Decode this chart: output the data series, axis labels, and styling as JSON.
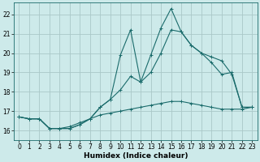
{
  "xlabel": "Humidex (Indice chaleur)",
  "xlim": [
    -0.5,
    23.5
  ],
  "ylim": [
    15.5,
    22.6
  ],
  "yticks": [
    16,
    17,
    18,
    19,
    20,
    21,
    22
  ],
  "xticks": [
    0,
    1,
    2,
    3,
    4,
    5,
    6,
    7,
    8,
    9,
    10,
    11,
    12,
    13,
    14,
    15,
    16,
    17,
    18,
    19,
    20,
    21,
    22,
    23
  ],
  "background_color": "#cdeaea",
  "grid_color": "#aac8c8",
  "line_color": "#1a6b6b",
  "line1_y": [
    16.7,
    16.6,
    16.6,
    16.1,
    16.1,
    16.1,
    16.3,
    16.6,
    17.2,
    17.6,
    19.9,
    21.2,
    18.5,
    19.9,
    21.3,
    22.3,
    21.1,
    20.4,
    20.0,
    19.5,
    18.9,
    19.0,
    17.2,
    17.2
  ],
  "line2_y": [
    16.7,
    16.6,
    16.6,
    16.1,
    16.1,
    16.1,
    16.3,
    16.6,
    17.2,
    17.6,
    18.1,
    18.8,
    18.5,
    19.0,
    20.0,
    21.2,
    21.1,
    20.4,
    20.0,
    19.8,
    19.6,
    18.9,
    17.2,
    17.2
  ],
  "line3_y": [
    16.7,
    16.6,
    16.6,
    16.1,
    16.1,
    16.2,
    16.4,
    16.6,
    16.8,
    16.9,
    17.0,
    17.1,
    17.2,
    17.3,
    17.4,
    17.5,
    17.5,
    17.4,
    17.3,
    17.2,
    17.1,
    17.1,
    17.1,
    17.2
  ]
}
